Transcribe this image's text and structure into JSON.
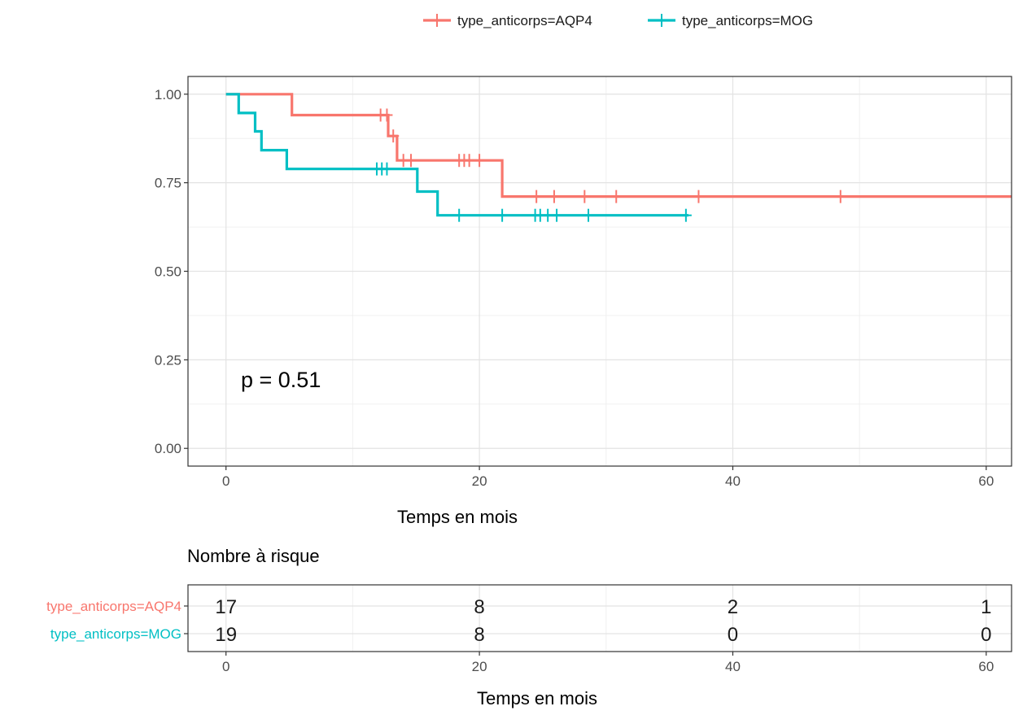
{
  "chart_data": [
    {
      "type": "line",
      "subtype": "kaplan-meier step",
      "xlabel": "Temps en mois",
      "ylabel": "",
      "xlim": [
        -3,
        62
      ],
      "ylim": [
        -0.05,
        1.05
      ],
      "x_ticks": [
        0,
        20,
        40,
        60
      ],
      "y_ticks": [
        0,
        0.25,
        0.5,
        0.75,
        1.0
      ],
      "y_tick_labels": [
        "0.00",
        "0.25",
        "0.50",
        "0.75",
        "1.00"
      ],
      "grid": true,
      "legend_position": "top",
      "annotation": "p = 0.51",
      "series": [
        {
          "name": "type_anticorps=AQP4",
          "color": "#F8766D",
          "steps": [
            [
              0,
              1.0
            ],
            [
              5.2,
              0.941
            ],
            [
              12.8,
              0.882
            ],
            [
              13.5,
              0.813
            ],
            [
              21.8,
              0.711
            ],
            [
              62,
              0.711
            ]
          ],
          "censor_x": [
            12.2,
            12.7,
            13.2,
            14.0,
            14.6,
            18.4,
            18.8,
            19.2,
            20.0,
            24.5,
            25.9,
            28.3,
            30.8,
            37.3,
            48.5
          ]
        },
        {
          "name": "type_anticorps=MOG",
          "color": "#00BFC4",
          "steps": [
            [
              0,
              1.0
            ],
            [
              1.0,
              0.947
            ],
            [
              2.3,
              0.895
            ],
            [
              2.8,
              0.842
            ],
            [
              4.8,
              0.789
            ],
            [
              15.1,
              0.725
            ],
            [
              16.7,
              0.658
            ],
            [
              36.5,
              0.658
            ]
          ],
          "censor_x": [
            11.9,
            12.3,
            12.7,
            18.4,
            21.8,
            24.4,
            24.8,
            25.4,
            26.1,
            28.6,
            36.3
          ]
        }
      ]
    },
    {
      "type": "table",
      "title": "Nombre à risque",
      "xlabel": "Temps en mois",
      "x_ticks": [
        0,
        20,
        40,
        60
      ],
      "rows": [
        {
          "label": "type_anticorps=AQP4",
          "color": "#F8766D",
          "values": [
            17,
            8,
            2,
            1
          ]
        },
        {
          "label": "type_anticorps=MOG",
          "color": "#00BFC4",
          "values": [
            19,
            8,
            0,
            0
          ]
        }
      ]
    }
  ]
}
